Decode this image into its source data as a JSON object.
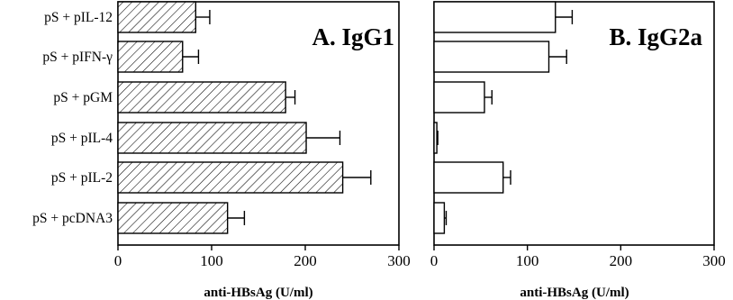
{
  "chart_data": [
    {
      "type": "bar",
      "orientation": "horizontal",
      "title": "A. IgG1",
      "xlabel": "anti-HBsAg (U/ml)",
      "xlim": [
        0,
        300
      ],
      "xticks": [
        0,
        100,
        200,
        300
      ],
      "bar_pattern": "diagonal-hatch",
      "categories": [
        "pS + pIL-12",
        "pS + pIFN-γ",
        "pS + pGM",
        "pS + pIL-4",
        "pS + pIL-2",
        "pS + pcDNA3"
      ],
      "values": [
        83,
        69,
        179,
        201,
        240,
        117
      ],
      "errors": [
        15,
        17,
        10,
        36,
        30,
        18
      ]
    },
    {
      "type": "bar",
      "orientation": "horizontal",
      "title": "B. IgG2a",
      "xlabel": "anti-HBsAg (U/ml)",
      "xlim": [
        0,
        300
      ],
      "xticks": [
        0,
        100,
        200,
        300
      ],
      "bar_pattern": "open",
      "categories": [
        "pS + pIL-12",
        "pS + pIFN-γ",
        "pS + pGM",
        "pS + pIL-4",
        "pS + pIL-2",
        "pS + pcDNA3"
      ],
      "values": [
        130,
        123,
        54,
        3,
        74,
        11
      ],
      "errors": [
        18,
        19,
        8,
        1,
        8,
        2
      ]
    }
  ]
}
